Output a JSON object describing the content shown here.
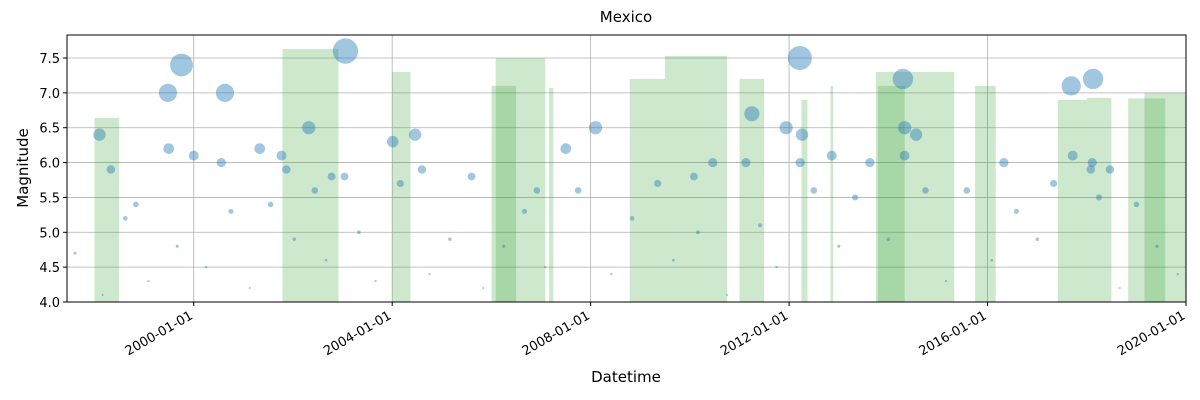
{
  "chart_data": {
    "type": "scatter",
    "title": "Mexico",
    "x_label": "Datetime",
    "y_label": "Magnitude",
    "xlim": [
      "1997-06-12",
      "2020-01-01"
    ],
    "xticks": [
      "2000-01-01",
      "2004-01-01",
      "2008-01-01",
      "2012-01-01",
      "2016-01-01",
      "2020-01-01"
    ],
    "ylim": [
      4,
      7.83
    ],
    "yticks": [
      {
        "value": 4,
        "label": "4.0"
      },
      4.5,
      {
        "value": 5,
        "label": "5.0"
      },
      5.5,
      {
        "value": 6,
        "label": "6.0"
      },
      6.5,
      {
        "value": 7,
        "label": "7.0"
      },
      7.5
    ],
    "grid": true,
    "spans": {
      "color": "#2ca02c",
      "start": [
        "1998-01-01",
        "2001-10-15",
        "2004-01-01",
        "2006-02-01",
        "2006-01-01",
        "2007-03-01",
        "2008-10-15",
        "2009-07-01",
        "2011-01-01",
        "2012-04-01",
        "2012-11-01",
        "2013-10-01",
        "2013-10-15",
        "2015-10-01",
        "2017-06-01",
        "2018-01-01",
        "2018-11-01",
        "2019-03-01"
      ],
      "end": [
        "1998-07-01",
        "2002-12-01",
        "2004-05-15",
        "2007-02-01",
        "2006-07-01",
        "2007-04-01",
        "2009-07-01",
        "2010-10-01",
        "2011-07-01",
        "2012-05-15",
        "2012-11-20",
        "2015-05-01",
        "2014-05-01",
        "2016-03-01",
        "2018-01-01",
        "2018-07-01",
        "2019-08-01",
        "2020-01-01"
      ],
      "values": [
        6.64,
        7.63,
        7.3,
        7.5,
        7.1,
        7.07,
        7.2,
        7.53,
        7.2,
        6.9,
        7.1,
        7.3,
        7.1,
        7.1,
        6.9,
        6.93,
        6.92,
        7.0
      ]
    },
    "points": {
      "color": "#1f77b4",
      "x": [
        "1998-02-06",
        "1998-05-01",
        "1999-06-25",
        "1999-10-03",
        "1999-07-01",
        "2000-01-01",
        "2000-08-18",
        "2000-07-22",
        "2001-05-01",
        "2001-10-08",
        "2001-11-13",
        "2002-04-27",
        "2003-01-22",
        "2002-10-12",
        "2003-01-15",
        "2004-01-05",
        "2004-06-18",
        "2004-08-07",
        "2005-08-07",
        "2006-12-01",
        "2007-07-02",
        "2008-02-06",
        "2009-05-08",
        "2010-01-30",
        "2010-06-18",
        "2011-04-02",
        "2011-02-17",
        "2011-12-10",
        "2012-03-20",
        "2012-04-05",
        "2012-03-22",
        "2012-11-10",
        "2013-08-18",
        "2014-04-18",
        "2014-05-01",
        "2014-07-24",
        "2014-04-30",
        "2016-04-30",
        "2017-09-08",
        "2018-02-16",
        "2017-09-19",
        "2018-02-10",
        "2018-01-30",
        "2018-06-20",
        "1997-08-10",
        "1998-03-01",
        "1998-08-15",
        "1998-11-01",
        "1999-02-01",
        "1999-09-01",
        "2000-04-01",
        "2000-10-01",
        "2001-02-15",
        "2001-07-20",
        "2002-01-10",
        "2002-06-10",
        "2002-09-01",
        "2003-05-01",
        "2003-09-01",
        "2004-03-01",
        "2004-10-01",
        "2005-03-01",
        "2005-11-01",
        "2006-04-01",
        "2006-09-01",
        "2007-02-01",
        "2007-10-01",
        "2008-06-01",
        "2008-11-01",
        "2009-09-01",
        "2010-03-01",
        "2010-10-01",
        "2011-06-01",
        "2011-10-01",
        "2012-07-01",
        "2013-01-01",
        "2013-05-01",
        "2014-01-01",
        "2014-10-01",
        "2015-03-01",
        "2015-08-01",
        "2016-02-01",
        "2016-08-01",
        "2017-01-01",
        "2017-05-01",
        "2018-04-01",
        "2018-09-01",
        "2019-01-01",
        "2019-06-01",
        "2019-11-01"
      ],
      "values": [
        6.4,
        5.9,
        7.0,
        7.4,
        6.2,
        6.1,
        7.0,
        6.0,
        6.2,
        6.1,
        5.9,
        6.5,
        7.6,
        5.8,
        5.8,
        6.3,
        6.4,
        5.9,
        5.8,
        5.6,
        6.2,
        6.5,
        5.7,
        5.8,
        6.0,
        6.7,
        6.0,
        6.5,
        7.5,
        6.4,
        6.0,
        6.1,
        6.0,
        7.2,
        6.5,
        6.4,
        6.1,
        6.0,
        7.1,
        7.2,
        6.1,
        6.0,
        5.9,
        5.9,
        4.7,
        4.1,
        5.2,
        5.4,
        4.3,
        4.8,
        4.5,
        5.3,
        4.2,
        5.4,
        4.9,
        5.6,
        4.6,
        5.0,
        4.3,
        5.7,
        4.4,
        4.9,
        4.2,
        4.8,
        5.3,
        4.5,
        5.6,
        4.4,
        5.2,
        4.6,
        5.0,
        4.1,
        5.1,
        4.5,
        5.6,
        4.8,
        5.5,
        4.9,
        5.6,
        4.3,
        5.6,
        4.6,
        5.3,
        4.9,
        5.7,
        5.5,
        4.2,
        5.4,
        4.8,
        4.4
      ]
    }
  }
}
